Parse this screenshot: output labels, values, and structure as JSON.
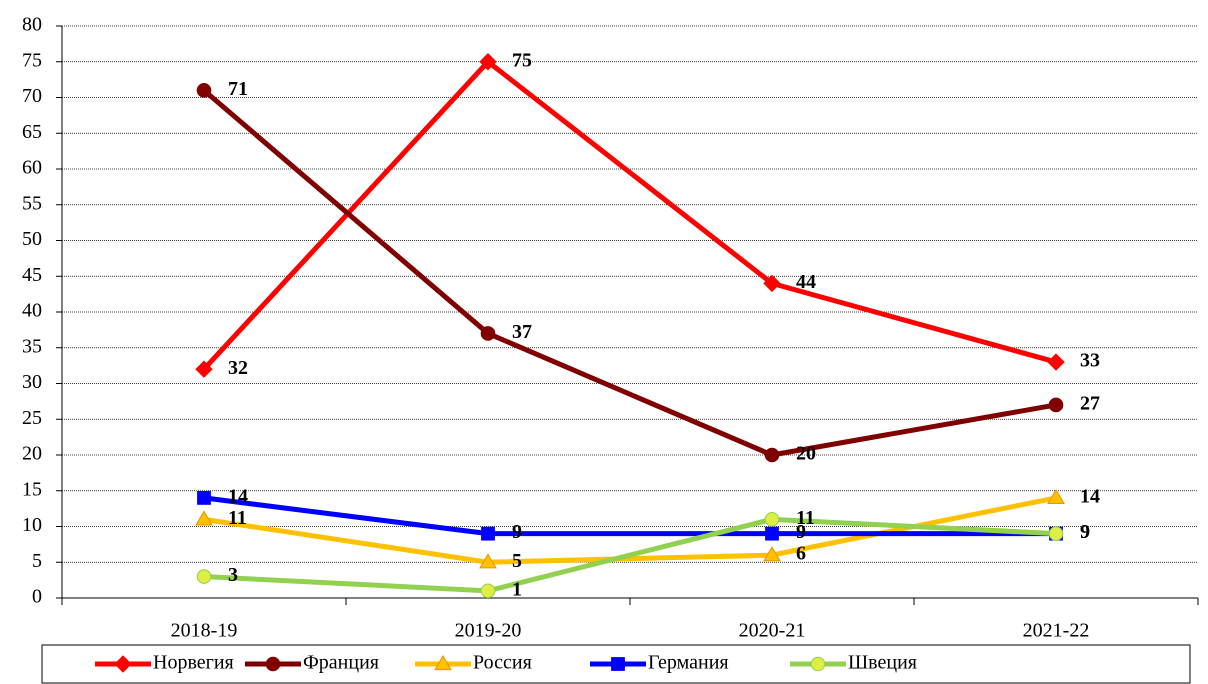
{
  "chart_data": {
    "type": "line",
    "categories": [
      "2018-19",
      "2019-20",
      "2020-21",
      "2021-22"
    ],
    "series": [
      {
        "name": "Норвегия",
        "color": "#ff0000",
        "marker": "diamond",
        "values": [
          32,
          75,
          44,
          33
        ]
      },
      {
        "name": "Франция",
        "color": "#800000",
        "marker": "circle",
        "values": [
          71,
          37,
          20,
          27
        ]
      },
      {
        "name": "Россия",
        "color": "#ffc000",
        "marker": "triangle",
        "values": [
          11,
          5,
          6,
          14
        ]
      },
      {
        "name": "Германия",
        "color": "#0000ff",
        "marker": "square",
        "values": [
          14,
          9,
          9,
          9
        ]
      },
      {
        "name": "Швеция",
        "color": "#92d050",
        "marker": "circle",
        "values": [
          3,
          1,
          11,
          9
        ]
      }
    ],
    "ylim": [
      0,
      80
    ],
    "yticks": [
      0,
      5,
      10,
      15,
      20,
      25,
      30,
      35,
      40,
      45,
      50,
      55,
      60,
      65,
      70,
      75,
      80
    ],
    "grid": true,
    "legend": "bottom"
  }
}
